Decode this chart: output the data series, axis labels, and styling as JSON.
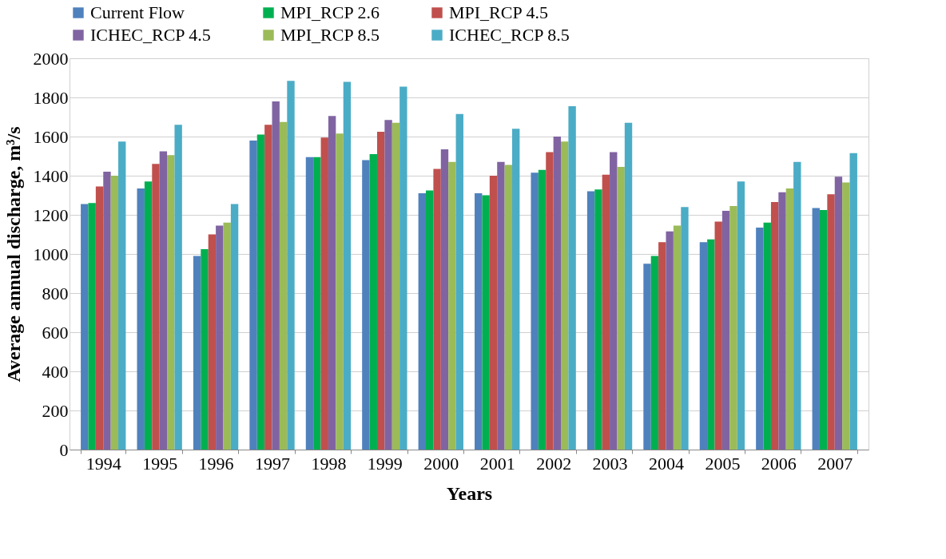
{
  "chart_data": {
    "type": "bar",
    "xlabel": "Years",
    "ylabel": "Average annual discharge, m³/s",
    "categories": [
      "1994",
      "1995",
      "1996",
      "1997",
      "1998",
      "1999",
      "2000",
      "2001",
      "2002",
      "2003",
      "2004",
      "2005",
      "2006",
      "2007"
    ],
    "series": [
      {
        "name": "Current Flow",
        "color": "#4f81bd",
        "values": [
          1255,
          1335,
          990,
          1580,
          1495,
          1480,
          1310,
          1310,
          1415,
          1320,
          950,
          1060,
          1135,
          1235
        ]
      },
      {
        "name": "MPI_RCP 2.6",
        "color": "#00b050",
        "values": [
          1260,
          1370,
          1025,
          1610,
          1495,
          1510,
          1325,
          1300,
          1430,
          1330,
          990,
          1075,
          1160,
          1225
        ]
      },
      {
        "name": "MPI_RCP 4.5",
        "color": "#c0504d",
        "values": [
          1345,
          1460,
          1100,
          1660,
          1595,
          1625,
          1435,
          1400,
          1520,
          1405,
          1060,
          1165,
          1265,
          1305
        ]
      },
      {
        "name": "ICHEC_RCP 4.5",
        "color": "#8064a2",
        "values": [
          1420,
          1525,
          1145,
          1780,
          1705,
          1685,
          1535,
          1470,
          1600,
          1520,
          1115,
          1220,
          1315,
          1395
        ]
      },
      {
        "name": "MPI_RCP 8.5",
        "color": "#9bbb59",
        "values": [
          1400,
          1505,
          1160,
          1675,
          1615,
          1670,
          1470,
          1455,
          1575,
          1445,
          1145,
          1245,
          1335,
          1365
        ]
      },
      {
        "name": "ICHEC_RCP 8.5",
        "color": "#4bacc6",
        "values": [
          1575,
          1660,
          1255,
          1885,
          1880,
          1855,
          1715,
          1640,
          1755,
          1670,
          1240,
          1370,
          1470,
          1515
        ]
      }
    ],
    "ylim": [
      0,
      2000
    ],
    "yticks": [
      0,
      200,
      400,
      600,
      800,
      1000,
      1200,
      1400,
      1600,
      1800,
      2000
    ],
    "grid": "y",
    "legend": "top"
  }
}
